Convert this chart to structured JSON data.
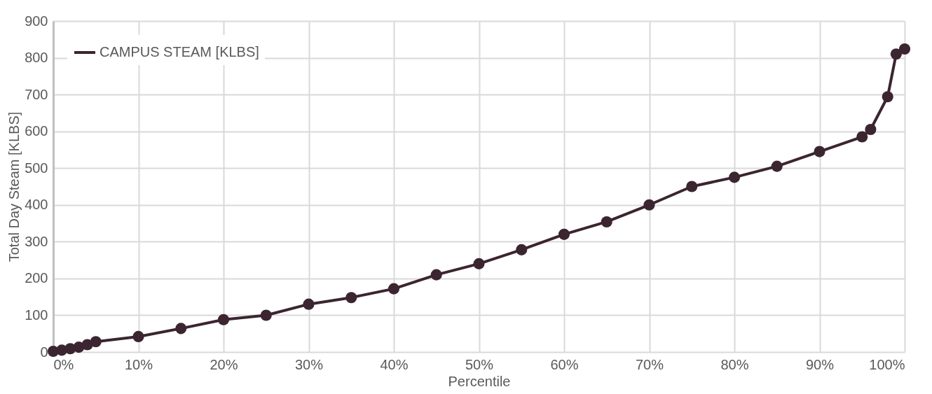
{
  "chart_data": {
    "type": "line",
    "xlabel": "Percentile",
    "ylabel": "Total Day Steam [KLBS]",
    "x": [
      0,
      1,
      2,
      3,
      4,
      5,
      10,
      15,
      20,
      25,
      30,
      35,
      40,
      45,
      50,
      55,
      60,
      65,
      70,
      75,
      80,
      85,
      90,
      95,
      96,
      98,
      99,
      100
    ],
    "series": [
      {
        "name": "CAMPUS STEAM [KLBS]",
        "color": "#3b2530",
        "values": [
          2,
          5,
          9,
          13,
          20,
          28,
          42,
          64,
          88,
          100,
          130,
          148,
          172,
          210,
          240,
          278,
          320,
          354,
          400,
          450,
          475,
          505,
          545,
          585,
          605,
          694,
          810,
          824
        ]
      }
    ],
    "xlim": [
      0,
      100
    ],
    "xticks": [
      {
        "value": 0,
        "label": "0%"
      },
      {
        "value": 10,
        "label": "10%"
      },
      {
        "value": 20,
        "label": "20%"
      },
      {
        "value": 30,
        "label": "30%"
      },
      {
        "value": 40,
        "label": "40%"
      },
      {
        "value": 50,
        "label": "50%"
      },
      {
        "value": 60,
        "label": "60%"
      },
      {
        "value": 70,
        "label": "70%"
      },
      {
        "value": 80,
        "label": "80%"
      },
      {
        "value": 90,
        "label": "90%"
      },
      {
        "value": 100,
        "label": "100%"
      }
    ],
    "ylim": [
      0,
      900
    ],
    "yticks": [
      0,
      100,
      200,
      300,
      400,
      500,
      600,
      700,
      800,
      900
    ],
    "grid": true,
    "legend": "top left",
    "marker": "circle",
    "line_style": "solid"
  }
}
